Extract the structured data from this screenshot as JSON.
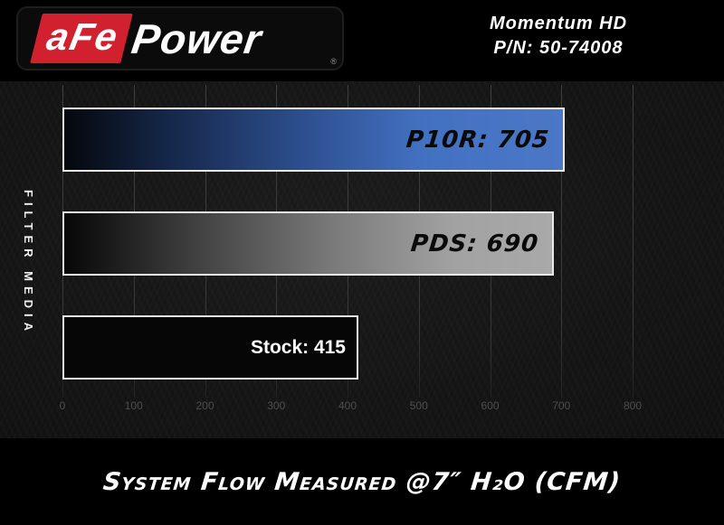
{
  "header": {
    "logo": {
      "brand_red": "aFe",
      "brand_white": "Power",
      "registered": "®"
    },
    "product": {
      "line1": "Momentum HD",
      "line2": "P/N: 50-74008"
    }
  },
  "chart_data": {
    "type": "bar",
    "orientation": "horizontal",
    "title": "System Flow Measured @7″ H₂O (CFM)",
    "ylabel": "FILTER MEDIA",
    "categories": [
      "P10R",
      "PDS",
      "Stock"
    ],
    "values": [
      705,
      690,
      415
    ],
    "bar_labels": [
      "P10R: 705",
      "PDS: 690",
      "Stock: 415"
    ],
    "xlim": [
      0,
      800
    ],
    "x_ticks": [
      0,
      100,
      200,
      300,
      400,
      500,
      600,
      700,
      800
    ],
    "grid": true,
    "legend": "none"
  },
  "colors": {
    "p10r_bar": "#4472C4",
    "pds_bar": "#A6A6A6",
    "stock_bar": "#060606",
    "bar_border": "#E9E9E9",
    "logo_red": "#D2212E",
    "background": "#000000",
    "plot_background": "#161616",
    "gridline": "#3E3E3E",
    "tick_text": "#4E4E4E"
  }
}
